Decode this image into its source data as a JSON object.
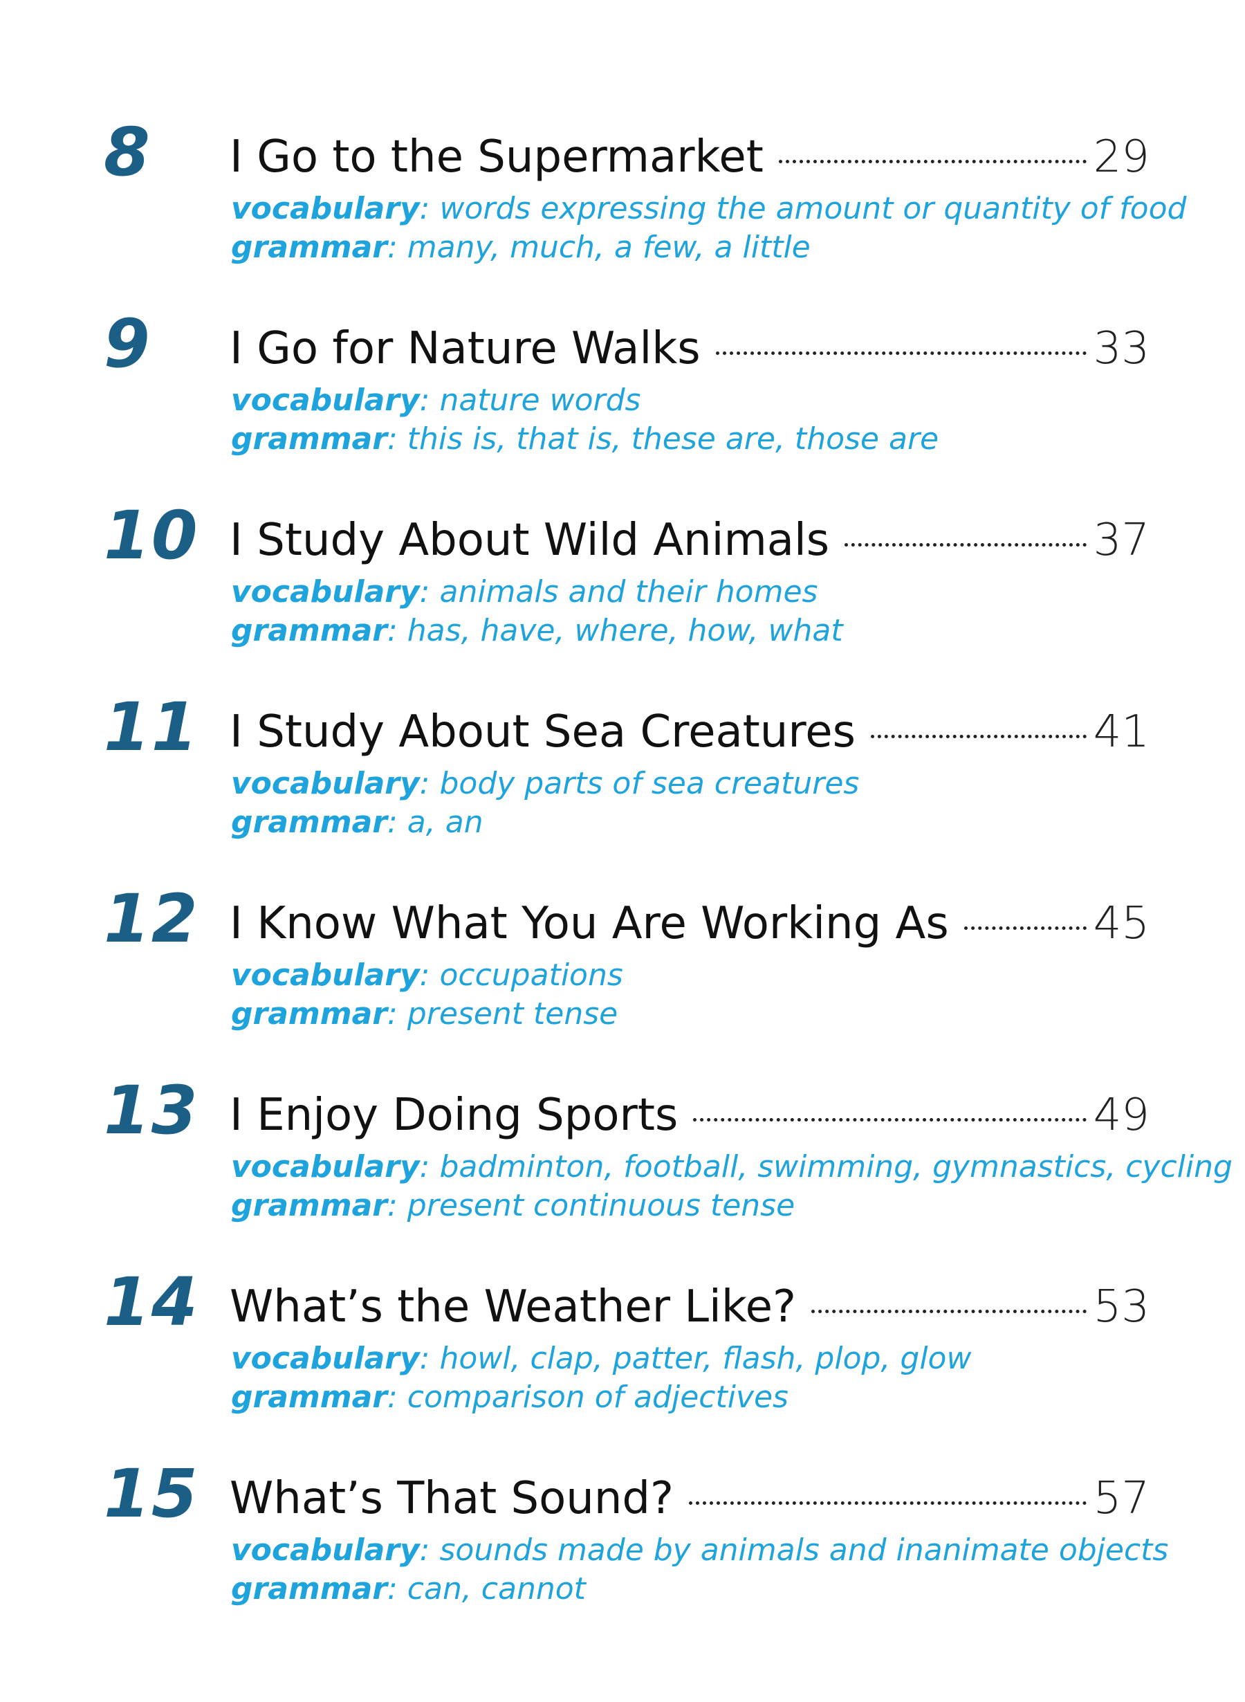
{
  "entries": [
    {
      "number": "8",
      "title": "I Go to the Supermarket",
      "page": "29",
      "vocab_label": "vocabulary",
      "vocab_text": ": words expressing the amount or quantity of food",
      "grammar_label": "grammar",
      "grammar_text": ": many, much, a few, a little"
    },
    {
      "number": "9",
      "title": "I Go for Nature Walks",
      "page": "33",
      "vocab_label": "vocabulary",
      "vocab_text": ": nature words",
      "grammar_label": "grammar",
      "grammar_text": ": this is, that is, these are, those are"
    },
    {
      "number": "10",
      "title": "I Study About Wild Animals",
      "page": "37",
      "vocab_label": "vocabulary",
      "vocab_text": ": animals and their homes",
      "grammar_label": "grammar",
      "grammar_text": ": has, have, where, how, what"
    },
    {
      "number": "11",
      "title": "I Study About Sea Creatures",
      "page": "41",
      "vocab_label": "vocabulary",
      "vocab_text": ": body parts of sea creatures",
      "grammar_label": "grammar",
      "grammar_text": ": a, an"
    },
    {
      "number": "12",
      "title": "I Know What You Are Working As",
      "page": "45",
      "vocab_label": "vocabulary",
      "vocab_text": ": occupations",
      "grammar_label": "grammar",
      "grammar_text": ": present tense"
    },
    {
      "number": "13",
      "title": "I Enjoy Doing Sports",
      "page": "49",
      "vocab_label": "vocabulary",
      "vocab_text": ": badminton, football, swimming, gymnastics, cycling",
      "grammar_label": "grammar",
      "grammar_text": ": present continuous tense"
    },
    {
      "number": "14",
      "title": "What’s the Weather Like?",
      "page": "53",
      "vocab_label": "vocabulary",
      "vocab_text": ": howl, clap, patter, flash, plop, glow",
      "grammar_label": "grammar",
      "grammar_text": ": comparison of adjectives"
    },
    {
      "number": "15",
      "title": "What’s That Sound?",
      "page": "57",
      "vocab_label": "vocabulary",
      "vocab_text": ": sounds made by animals and inanimate objects",
      "grammar_label": "grammar",
      "grammar_text": ": can, cannot"
    }
  ]
}
